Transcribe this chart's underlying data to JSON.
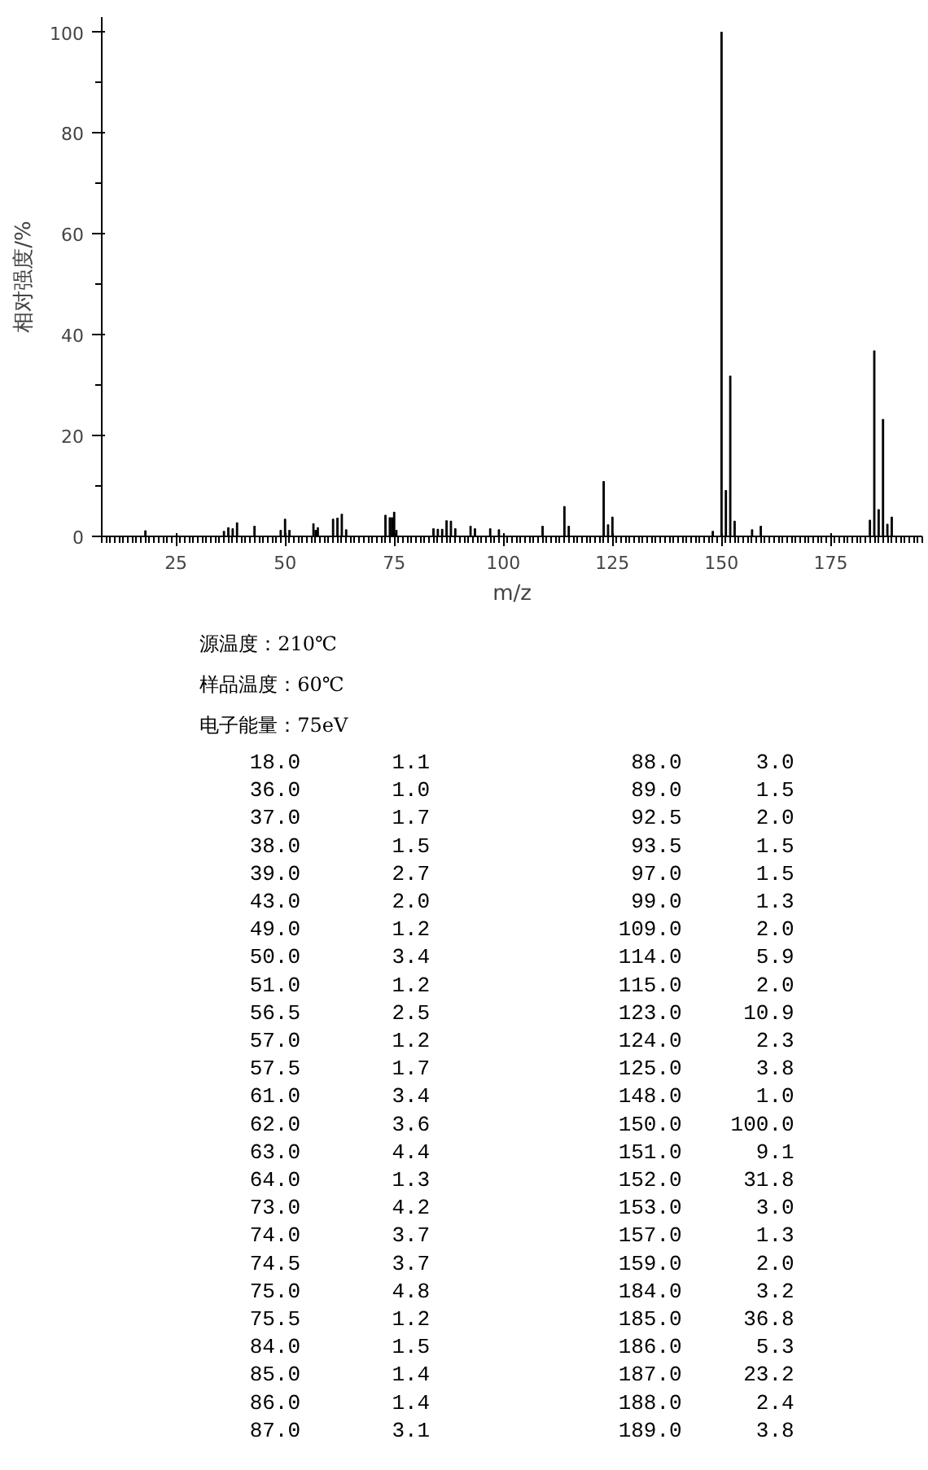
{
  "chart_data": {
    "type": "bar",
    "xlabel": "m/z",
    "ylabel": "相对强度/%",
    "color": "#000000",
    "x": [
      18.0,
      36.0,
      37.0,
      38.0,
      39.0,
      43.0,
      49.0,
      50.0,
      51.0,
      56.5,
      57.0,
      57.5,
      61.0,
      62.0,
      63.0,
      64.0,
      73.0,
      74.0,
      74.5,
      75.0,
      75.5,
      84.0,
      85.0,
      86.0,
      87.0,
      88.0,
      89.0,
      92.5,
      93.5,
      97.0,
      99.0,
      109.0,
      114.0,
      115.0,
      123.0,
      124.0,
      125.0,
      148.0,
      150.0,
      151.0,
      152.0,
      153.0,
      157.0,
      159.0,
      184.0,
      185.0,
      186.0,
      187.0,
      188.0,
      189.0
    ],
    "values": [
      1.1,
      1.0,
      1.7,
      1.5,
      2.7,
      2.0,
      1.2,
      3.4,
      1.2,
      2.5,
      1.2,
      1.7,
      3.4,
      3.6,
      4.4,
      1.3,
      4.2,
      3.7,
      3.7,
      4.8,
      1.2,
      1.5,
      1.4,
      1.4,
      3.1,
      3.0,
      1.5,
      2.0,
      1.5,
      1.5,
      1.3,
      2.0,
      5.9,
      2.0,
      10.9,
      2.3,
      3.8,
      1.0,
      100.0,
      9.1,
      31.8,
      3.0,
      1.3,
      2.0,
      3.2,
      36.8,
      5.3,
      23.2,
      2.4,
      3.8
    ],
    "xlim": [
      8,
      196
    ],
    "xticks": [
      25,
      50,
      75,
      100,
      125,
      150,
      175
    ],
    "ylim": [
      0,
      103
    ],
    "yticks": [
      0,
      20,
      40,
      60,
      80,
      100
    ],
    "grid": false,
    "annotations": [
      "源温度：210℃",
      "样品温度：60℃",
      "电子能量：75eV",
      "18.0",
      "1.1",
      "36.0",
      "1.0",
      "37.0",
      "1.7",
      "38.0",
      "1.5",
      "39.0",
      "2.7",
      "43.0",
      "2.0",
      "49.0",
      "1.2",
      "50.0",
      "3.4",
      "51.0",
      "1.2",
      "56.5",
      "2.5",
      "57.0",
      "1.2",
      "57.5",
      "1.7",
      "61.0",
      "3.4",
      "62.0",
      "3.6",
      "63.0",
      "4.4",
      "64.0",
      "1.3",
      "73.0",
      "4.2",
      "74.0",
      "3.7",
      "74.5",
      "3.7",
      "75.0",
      "4.8",
      "75.5",
      "1.2",
      "84.0",
      "1.5",
      "85.0",
      "1.4",
      "86.0",
      "1.4",
      "87.0",
      "3.1",
      "88.0",
      "3.0",
      "89.0",
      "1.5",
      "92.5",
      "2.0",
      "93.5",
      "1.5",
      "97.0",
      "1.5",
      "99.0",
      "1.3",
      "109.0",
      "2.0",
      "114.0",
      "5.9",
      "115.0",
      "2.0",
      "123.0",
      "10.9",
      "124.0",
      "2.3",
      "125.0",
      "3.8",
      "148.0",
      "1.0",
      "150.0",
      "100.0",
      "151.0",
      "9.1",
      "152.0",
      "31.8",
      "153.0",
      "3.0",
      "157.0",
      "1.3",
      "159.0",
      "2.0",
      "184.0",
      "3.2",
      "185.0",
      "36.8",
      "186.0",
      "5.3",
      "187.0",
      "23.2",
      "188.0",
      "2.4",
      "189.0",
      "3.8"
    ]
  }
}
